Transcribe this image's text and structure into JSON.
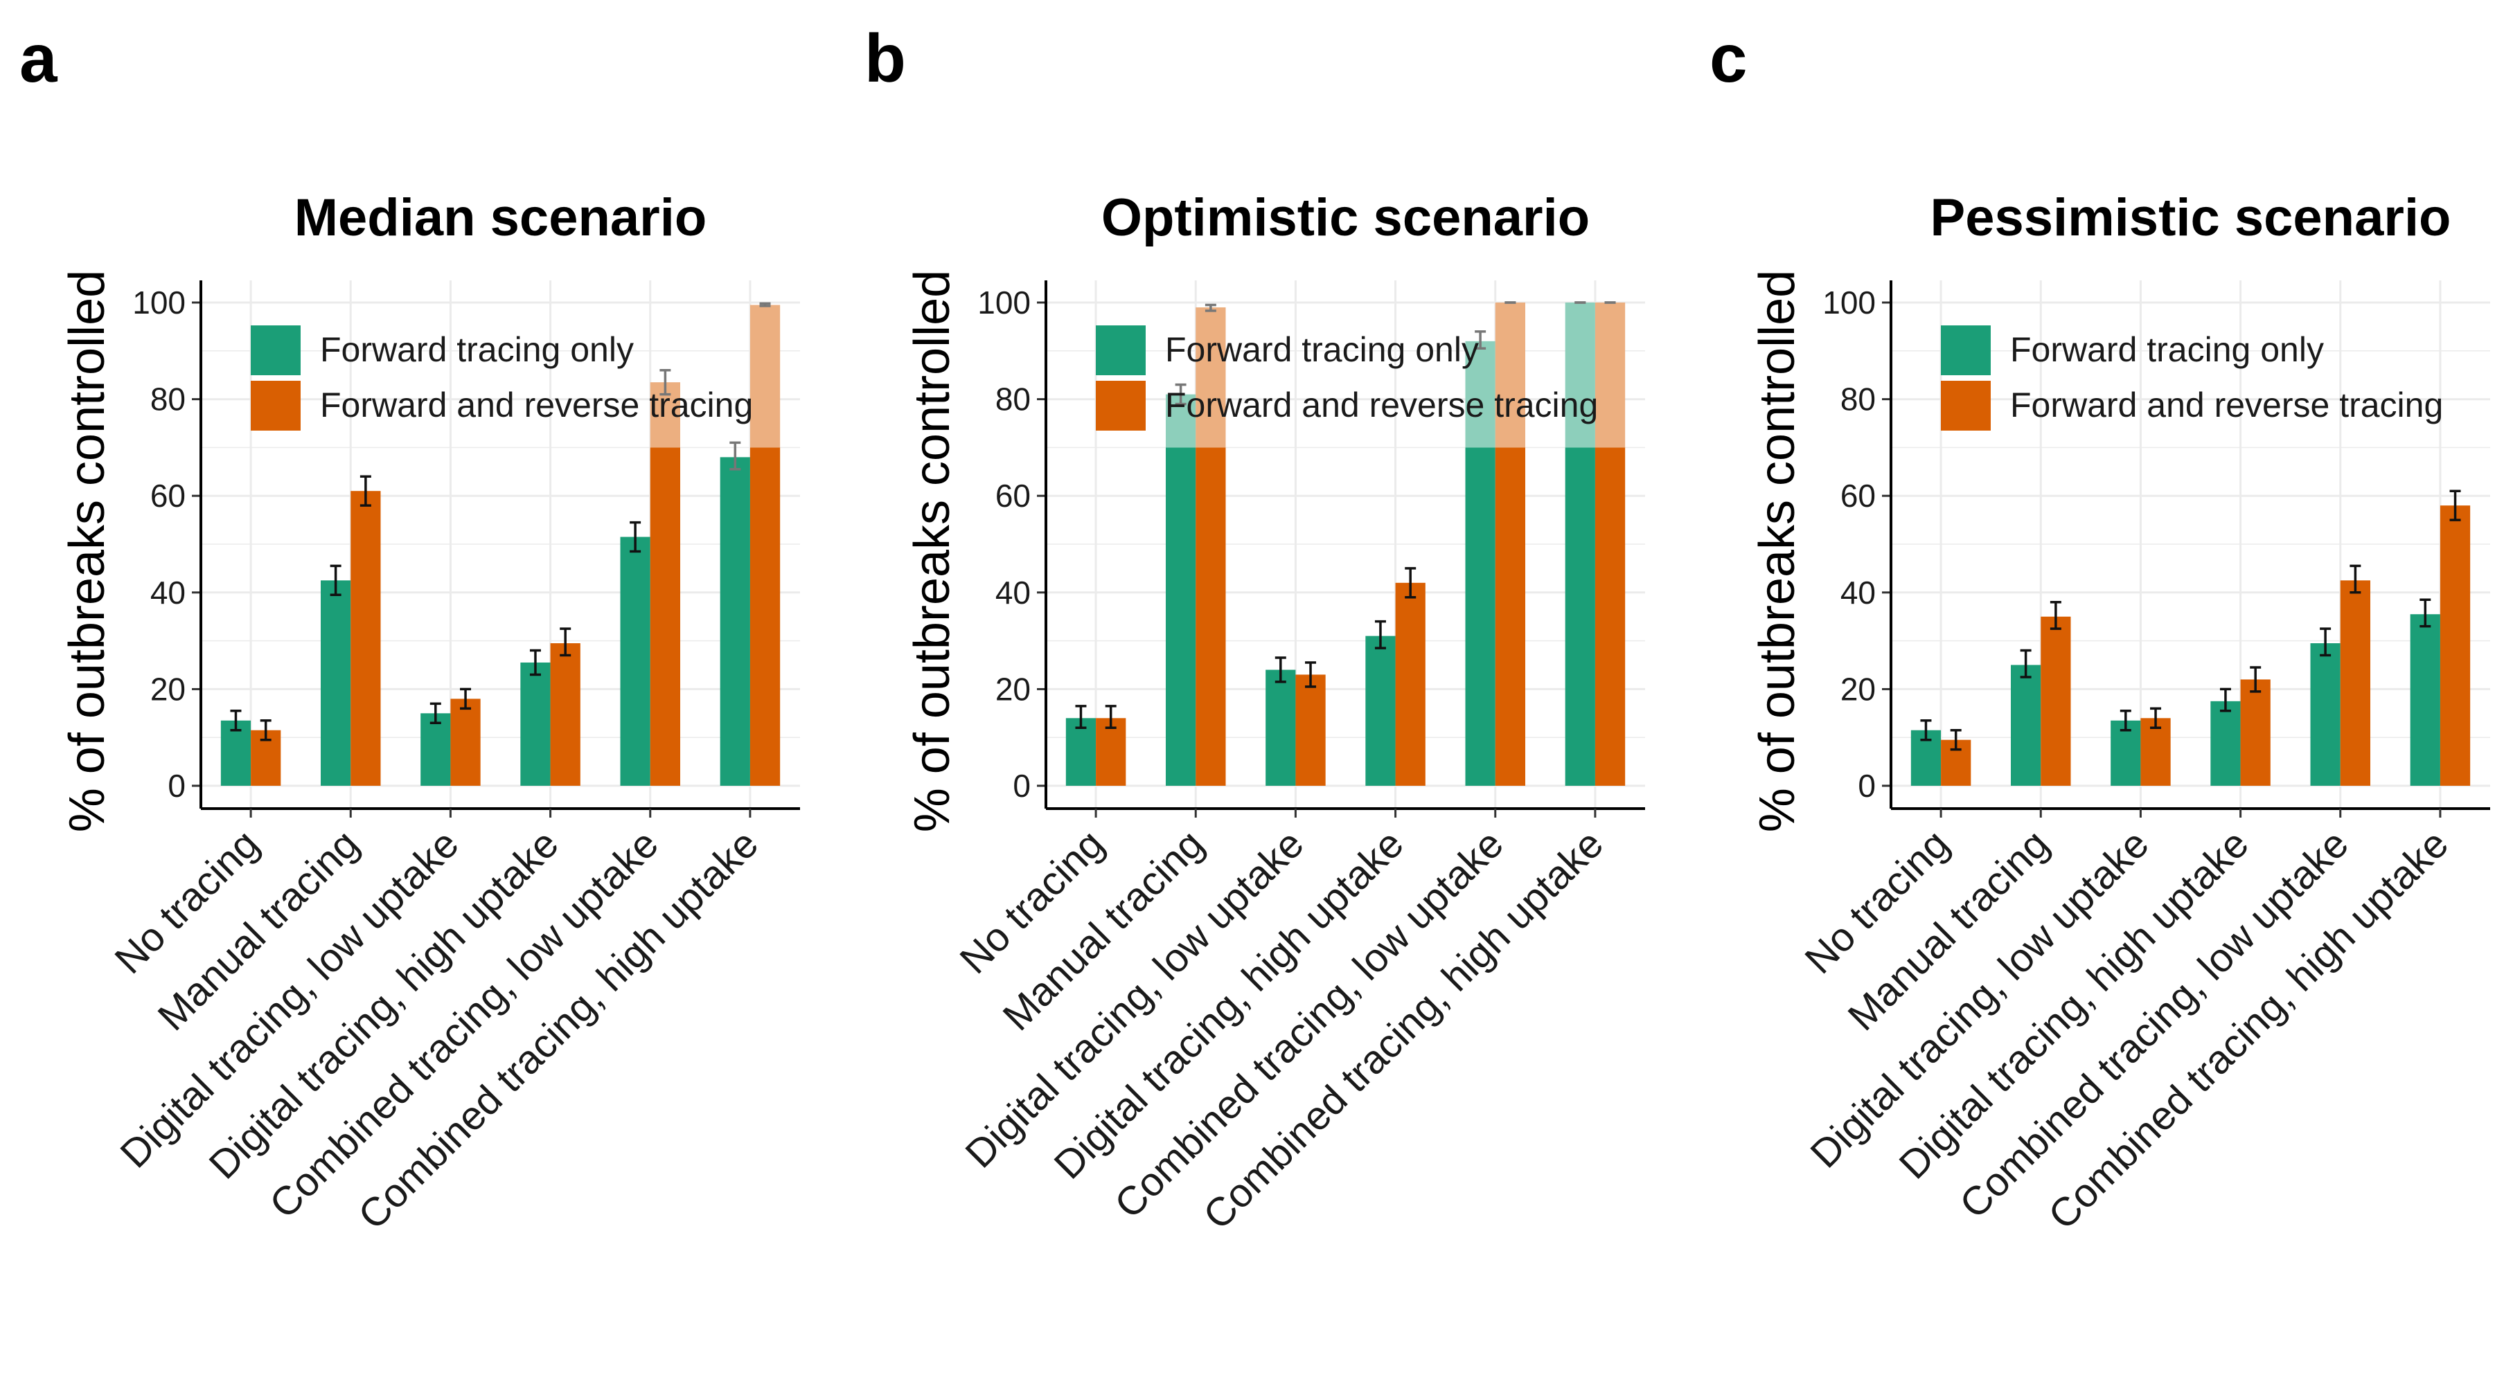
{
  "panel_labels": [
    "a",
    "b",
    "c"
  ],
  "colors": {
    "forward": "#1b9e77",
    "reverse": "#d95f02",
    "forward_light": "#8dcfbb",
    "reverse_light": "#ecaf80",
    "grid": "#ebebeb"
  },
  "chart_data": [
    {
      "type": "bar",
      "title": "Median scenario",
      "ylabel": "% of outbreaks controlled",
      "xlabel": "",
      "ylim": [
        0,
        100
      ],
      "yticks": [
        0,
        20,
        40,
        60,
        80,
        100
      ],
      "grid": true,
      "legend_position": "top-left",
      "categories": [
        "No tracing",
        "Manual tracing",
        "Digital tracing, low uptake",
        "Digital tracing, high uptake",
        "Combined tracing, low uptake",
        "Combined tracing, high uptake"
      ],
      "series": [
        {
          "name": "Forward tracing only",
          "values": [
            13.5,
            42.5,
            15,
            25.5,
            51.5,
            68
          ],
          "err_low": [
            11.5,
            39.5,
            13,
            23,
            48.5,
            65.5
          ],
          "err_high": [
            15.5,
            45.5,
            17,
            28,
            54.5,
            71
          ]
        },
        {
          "name": "Forward and reverse tracing",
          "values": [
            11.5,
            61,
            18,
            29.5,
            83.5,
            99.5
          ],
          "err_low": [
            9.5,
            58,
            16,
            27,
            81,
            99.3
          ],
          "err_high": [
            13.5,
            64,
            20,
            32.5,
            86,
            99.8
          ]
        }
      ]
    },
    {
      "type": "bar",
      "title": "Optimistic scenario",
      "ylabel": "% of outbreaks controlled",
      "xlabel": "",
      "ylim": [
        0,
        100
      ],
      "yticks": [
        0,
        20,
        40,
        60,
        80,
        100
      ],
      "grid": true,
      "legend_position": "top-left",
      "categories": [
        "No tracing",
        "Manual tracing",
        "Digital tracing, low uptake",
        "Digital tracing, high uptake",
        "Combined tracing, low uptake",
        "Combined tracing, high uptake"
      ],
      "series": [
        {
          "name": "Forward tracing only",
          "values": [
            14,
            81,
            24,
            31,
            92,
            100
          ],
          "err_low": [
            12,
            79,
            21.5,
            28.5,
            90.5,
            100
          ],
          "err_high": [
            16.5,
            83,
            26.5,
            34,
            94,
            100
          ]
        },
        {
          "name": "Forward and reverse tracing",
          "values": [
            14,
            99,
            23,
            42,
            100,
            100
          ],
          "err_low": [
            12,
            98.3,
            20.5,
            39,
            100,
            100
          ],
          "err_high": [
            16.5,
            99.5,
            25.5,
            45,
            100,
            100
          ]
        }
      ]
    },
    {
      "type": "bar",
      "title": "Pessimistic scenario",
      "ylabel": "% of outbreaks controlled",
      "xlabel": "",
      "ylim": [
        0,
        100
      ],
      "yticks": [
        0,
        20,
        40,
        60,
        80,
        100
      ],
      "grid": true,
      "legend_position": "top-left",
      "categories": [
        "No tracing",
        "Manual tracing",
        "Digital tracing, low uptake",
        "Digital tracing, high uptake",
        "Combined tracing, low uptake",
        "Combined tracing, high uptake"
      ],
      "series": [
        {
          "name": "Forward tracing only",
          "values": [
            11.5,
            25,
            13.5,
            17.5,
            29.5,
            35.5
          ],
          "err_low": [
            9.5,
            22.5,
            11.5,
            15.5,
            27,
            33
          ],
          "err_high": [
            13.5,
            28,
            15.5,
            20,
            32.5,
            38.5
          ]
        },
        {
          "name": "Forward and reverse tracing",
          "values": [
            9.5,
            35,
            14,
            22,
            42.5,
            58
          ],
          "err_low": [
            7.5,
            32.5,
            12,
            19.5,
            40,
            55
          ],
          "err_high": [
            11.5,
            38,
            16,
            24.5,
            45.5,
            61
          ]
        }
      ]
    }
  ]
}
